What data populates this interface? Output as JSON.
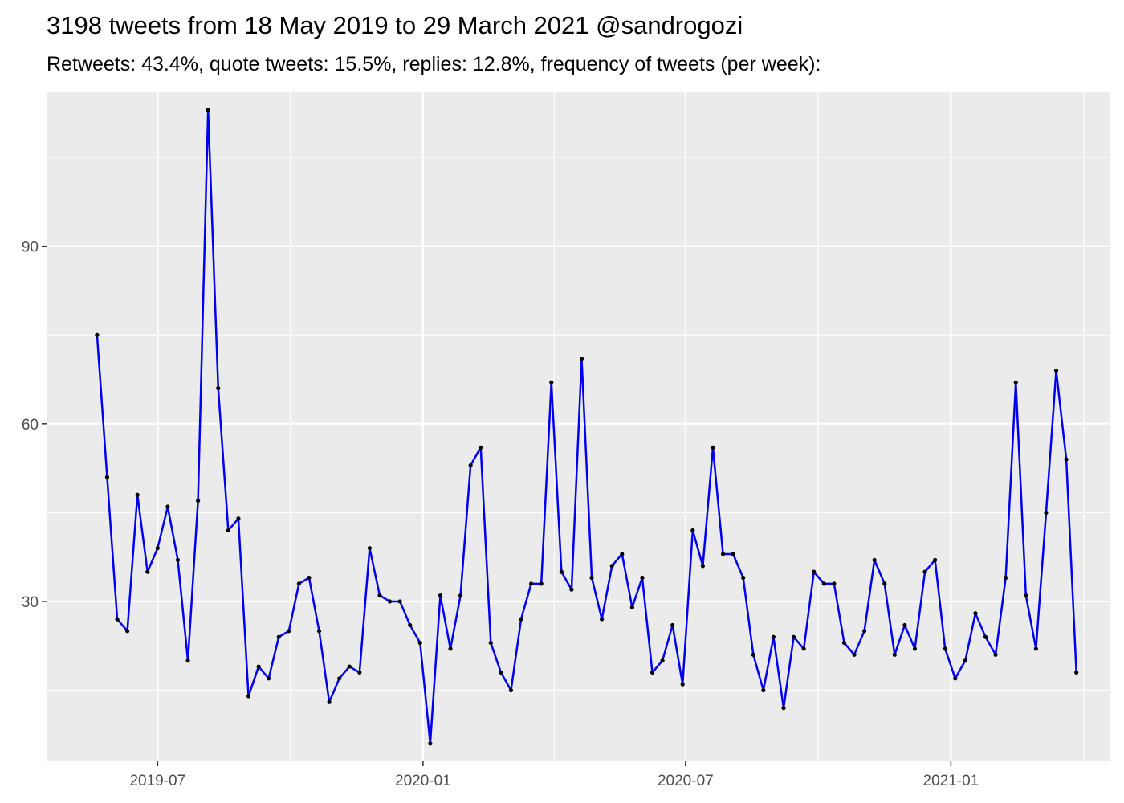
{
  "chart_data": {
    "type": "line",
    "title": "3198 tweets from 18 May 2019 to 29 March 2021 @sandrogozi",
    "subtitle": "Retweets: 43.4%, quote tweets: 15.5%, replies: 12.8%, frequency of tweets (per week):",
    "xlabel": "",
    "ylabel": "",
    "x_axis_type": "date",
    "x_ticks": [
      "2019-07",
      "2020-01",
      "2020-07",
      "2021-01"
    ],
    "y_ticks": [
      30,
      60,
      90
    ],
    "xlim": [
      "2019-04-15",
      "2021-04-21"
    ],
    "ylim": [
      3,
      116
    ],
    "grid": true,
    "legend": "none",
    "colors": {
      "line": "#0000ee",
      "point": "#000000",
      "panel": "#ebebeb",
      "grid": "#ffffff"
    },
    "series": [
      {
        "x": [
          "2019-05-20",
          "2019-05-27",
          "2019-06-03",
          "2019-06-10",
          "2019-06-17",
          "2019-06-24",
          "2019-07-01",
          "2019-07-08",
          "2019-07-15",
          "2019-07-22",
          "2019-07-29",
          "2019-08-05",
          "2019-08-12",
          "2019-08-19",
          "2019-08-26",
          "2019-09-02",
          "2019-09-09",
          "2019-09-16",
          "2019-09-23",
          "2019-09-30",
          "2019-10-07",
          "2019-10-14",
          "2019-10-21",
          "2019-10-28",
          "2019-11-04",
          "2019-11-11",
          "2019-11-18",
          "2019-11-25",
          "2019-12-02",
          "2019-12-09",
          "2019-12-16",
          "2019-12-23",
          "2019-12-30",
          "2020-01-06",
          "2020-01-13",
          "2020-01-20",
          "2020-01-27",
          "2020-02-03",
          "2020-02-10",
          "2020-02-17",
          "2020-02-24",
          "2020-03-02",
          "2020-03-09",
          "2020-03-16",
          "2020-03-23",
          "2020-03-30",
          "2020-04-06",
          "2020-04-13",
          "2020-04-20",
          "2020-04-27",
          "2020-05-04",
          "2020-05-11",
          "2020-05-18",
          "2020-05-25",
          "2020-06-01",
          "2020-06-08",
          "2020-06-15",
          "2020-06-22",
          "2020-06-29",
          "2020-07-06",
          "2020-07-13",
          "2020-07-20",
          "2020-07-27",
          "2020-08-03",
          "2020-08-10",
          "2020-08-17",
          "2020-08-24",
          "2020-08-31",
          "2020-09-07",
          "2020-09-14",
          "2020-09-21",
          "2020-09-28",
          "2020-10-05",
          "2020-10-12",
          "2020-10-19",
          "2020-10-26",
          "2020-11-02",
          "2020-11-09",
          "2020-11-16",
          "2020-11-23",
          "2020-11-30",
          "2020-12-07",
          "2020-12-14",
          "2020-12-21",
          "2020-12-28",
          "2021-01-04",
          "2021-01-11",
          "2021-01-18",
          "2021-01-25",
          "2021-02-01",
          "2021-02-08",
          "2021-02-15",
          "2021-02-22",
          "2021-03-01",
          "2021-03-08",
          "2021-03-15",
          "2021-03-22",
          "2021-03-29"
        ],
        "values": [
          75,
          51,
          27,
          25,
          48,
          35,
          39,
          46,
          37,
          20,
          47,
          113,
          66,
          42,
          44,
          14,
          19,
          17,
          24,
          25,
          33,
          34,
          25,
          13,
          17,
          19,
          18,
          39,
          31,
          30,
          30,
          26,
          23,
          6,
          31,
          22,
          31,
          53,
          56,
          23,
          18,
          15,
          27,
          33,
          33,
          67,
          35,
          32,
          71,
          34,
          27,
          36,
          38,
          29,
          34,
          18,
          20,
          26,
          16,
          42,
          36,
          56,
          38,
          38,
          34,
          21,
          15,
          24,
          12,
          24,
          22,
          35,
          33,
          33,
          23,
          21,
          25,
          37,
          33,
          21,
          26,
          22,
          35,
          37,
          22,
          17,
          20,
          28,
          24,
          21,
          34,
          67,
          31,
          22,
          45,
          69,
          54,
          18
        ]
      }
    ]
  }
}
